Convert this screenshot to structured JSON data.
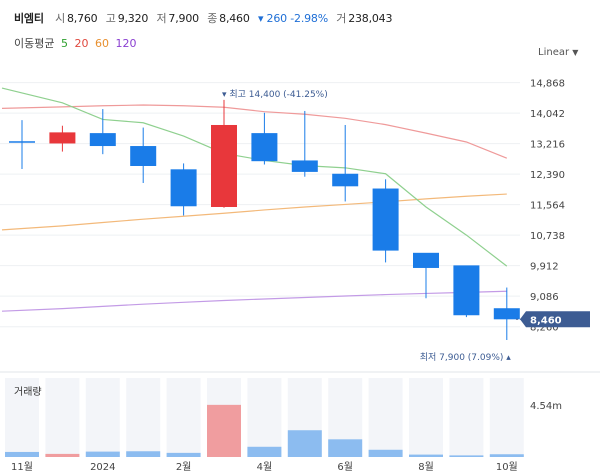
{
  "header": {
    "name": "비엠티",
    "open_label": "시",
    "open": "8,760",
    "high_label": "고",
    "high": "9,320",
    "low_label": "저",
    "low": "7,900",
    "close_label": "종",
    "close": "8,460",
    "change": "▾ 260 -2.98%",
    "volume_label": "거",
    "volume": "238,043"
  },
  "ma_legend": {
    "title": "이동평균",
    "items": [
      {
        "label": "5",
        "color": "#2e9f2e"
      },
      {
        "label": "20",
        "color": "#e0493f"
      },
      {
        "label": "60",
        "color": "#e8902f"
      },
      {
        "label": "120",
        "color": "#8a3fd1"
      }
    ]
  },
  "scale_mode": "Linear",
  "colors": {
    "up": "#e8373b",
    "down": "#1a7ce8",
    "ma5": "#8fd08f",
    "ma20": "#ef9a9a",
    "ma60": "#f3b97a",
    "ma120": "#c39be6",
    "current": "#3d5c93"
  },
  "chart_data": {
    "type": "candlestick",
    "period": "monthly",
    "ylim": [
      7900,
      15100
    ],
    "y_ticks": [
      8260,
      9086,
      9912,
      10738,
      11564,
      12390,
      13216,
      14042,
      14868
    ],
    "y_tick_labels": [
      "8,260",
      "9,086",
      "9,912",
      "10,738",
      "11,564",
      "12,390",
      "13,216",
      "14,042",
      "14,868"
    ],
    "x_labels": [
      {
        "index": 0,
        "label": "11월"
      },
      {
        "index": 2,
        "label": "2024"
      },
      {
        "index": 4,
        "label": "2월"
      },
      {
        "index": 6,
        "label": "4월"
      },
      {
        "index": 8,
        "label": "6월"
      },
      {
        "index": 10,
        "label": "8월"
      },
      {
        "index": 12,
        "label": "10월"
      }
    ],
    "candles": [
      {
        "o": 13280,
        "h": 13850,
        "l": 12530,
        "c": 13240
      },
      {
        "o": 13220,
        "h": 13700,
        "l": 13000,
        "c": 13520
      },
      {
        "o": 13500,
        "h": 14150,
        "l": 12930,
        "c": 13150
      },
      {
        "o": 13150,
        "h": 13650,
        "l": 12150,
        "c": 12610
      },
      {
        "o": 12520,
        "h": 12680,
        "l": 11270,
        "c": 11520
      },
      {
        "o": 11500,
        "h": 14400,
        "l": 11480,
        "c": 13720
      },
      {
        "o": 13500,
        "h": 14050,
        "l": 12650,
        "c": 12740
      },
      {
        "o": 12760,
        "h": 14100,
        "l": 12320,
        "c": 12450
      },
      {
        "o": 12400,
        "h": 13720,
        "l": 11650,
        "c": 12060
      },
      {
        "o": 12000,
        "h": 12250,
        "l": 10000,
        "c": 10320
      },
      {
        "o": 10260,
        "h": 10250,
        "l": 9030,
        "c": 9850
      },
      {
        "o": 9920,
        "h": 9900,
        "l": 8520,
        "c": 8570
      },
      {
        "o": 8760,
        "h": 9320,
        "l": 7900,
        "c": 8460
      }
    ],
    "ma5": [
      14720,
      14320,
      13870,
      13780,
      13420,
      12950,
      12760,
      12620,
      12560,
      12400,
      11500,
      10740,
      9900
    ],
    "ma20": [
      14170,
      14210,
      14240,
      14260,
      14240,
      14200,
      14080,
      14010,
      13900,
      13730,
      13500,
      13260,
      12820
    ],
    "ma60": [
      10880,
      10990,
      11080,
      11170,
      11250,
      11330,
      11420,
      11500,
      11570,
      11640,
      11720,
      11790,
      11850
    ],
    "ma120": [
      8680,
      8750,
      8810,
      8870,
      8920,
      8970,
      9010,
      9050,
      9090,
      9130,
      9160,
      9190,
      9220
    ],
    "high_marker": {
      "label": "▾ 최고 14,400 (-41.25%)",
      "index": 5,
      "value": 14400
    },
    "low_marker": {
      "label": "최저 7,900 (7.09%) ▴",
      "index": 12,
      "value": 7900
    },
    "current_price_label": "8,460",
    "current_price": 8460,
    "volume": {
      "title": "거래량",
      "max_label": "4.54m",
      "max": 4540000,
      "values": [
        440000,
        270000,
        470000,
        500000,
        360000,
        4540000,
        890000,
        2330000,
        1540000,
        630000,
        210000,
        140000,
        240000
      ]
    }
  }
}
